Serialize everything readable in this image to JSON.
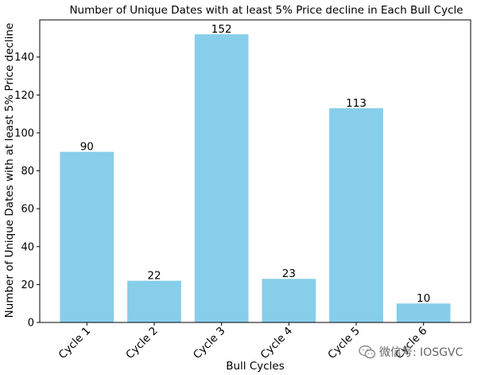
{
  "chart_data": {
    "type": "bar",
    "title": "Number of Unique Dates with at least 5% Price decline in Each Bull Cycle",
    "xlabel": "Bull Cycles",
    "ylabel": "Number of Unique Dates with at least 5% Price decline",
    "categories": [
      "Cycle 1",
      "Cycle 2",
      "Cycle 3",
      "Cycle 4",
      "Cycle 5",
      "Cycle 6"
    ],
    "values": [
      90,
      22,
      152,
      23,
      113,
      10
    ],
    "data_labels": [
      "90",
      "22",
      "152",
      "23",
      "113",
      "10"
    ],
    "ylim": [
      0,
      159.6
    ],
    "yticks": [
      0,
      20,
      40,
      60,
      80,
      100,
      120,
      140
    ],
    "bar_color": "#87ceeb",
    "grid": false,
    "legend": "none"
  },
  "watermark": {
    "text": "微信号: IOSGVC",
    "icon": "wechat-icon"
  }
}
